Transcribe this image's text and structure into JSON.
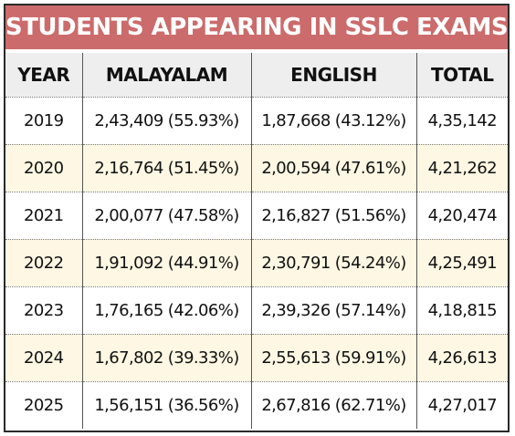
{
  "title": "STUDENTS APPEARING IN SSLC EXAMS",
  "table": {
    "headers": [
      "YEAR",
      "MALAYALAM",
      "ENGLISH",
      "TOTAL"
    ],
    "rows": [
      [
        "2019",
        "2,43,409 (55.93%)",
        "1,87,668 (43.12%)",
        "4,35,142"
      ],
      [
        "2020",
        "2,16,764 (51.45%)",
        "2,00,594 (47.61%)",
        "4,21,262"
      ],
      [
        "2021",
        "2,00,077 (47.58%)",
        "2,16,827 (51.56%)",
        "4,20,474"
      ],
      [
        "2022",
        "1,91,092 (44.91%)",
        "2,30,791 (54.24%)",
        "4,25,491"
      ],
      [
        "2023",
        "1,76,165 (42.06%)",
        "2,39,326 (57.14%)",
        "4,18,815"
      ],
      [
        "2024",
        "1,67,802 (39.33%)",
        "2,55,613 (59.91%)",
        "4,26,613"
      ],
      [
        "2025",
        "1,56,151 (36.56%)",
        "2,67,816 (62.71%)",
        "4,27,017"
      ]
    ]
  },
  "colors": {
    "title_bar": "#cc6b6b",
    "title_text": "#ffffff",
    "header_bg": "#eeeeee",
    "stripe_bg": "#fdf7e3",
    "border": "#2a2a2a"
  }
}
